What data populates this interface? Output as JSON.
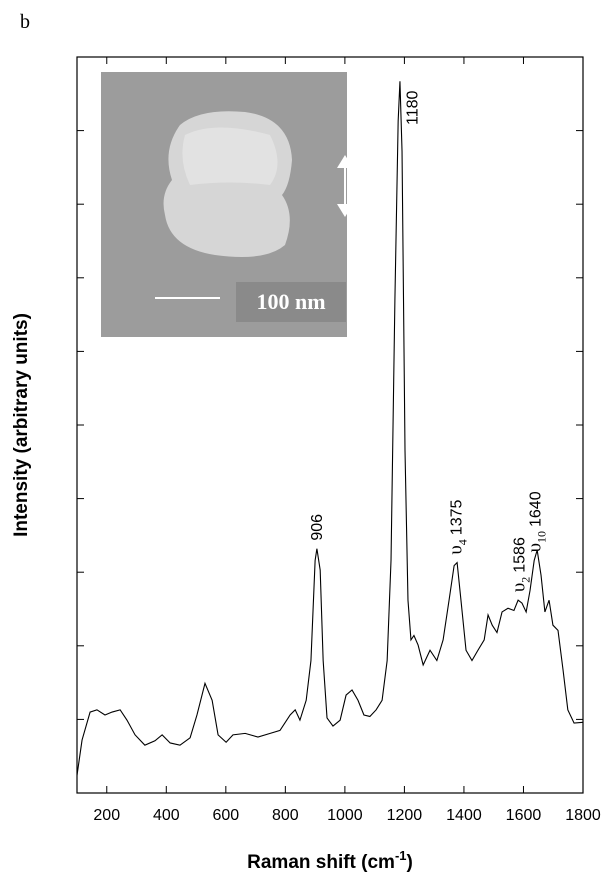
{
  "chart_data": {
    "type": "line",
    "panel_label": "b",
    "x_label": {
      "text": "Raman shift (cm",
      "superscript": "-1",
      "close": ")"
    },
    "y_label": "Intensity (arbitrary units)",
    "xlim": [
      100,
      1800
    ],
    "xticks": [
      200,
      400,
      600,
      800,
      1000,
      1200,
      1400,
      1600,
      1800
    ],
    "ylim": [
      0,
      10
    ],
    "yticks": [
      1,
      2,
      3,
      4,
      5,
      6,
      7,
      8,
      9
    ],
    "ytick_labels": false,
    "inset_scale_label": "100 nm",
    "x": [
      100,
      117,
      144,
      167,
      194,
      218,
      245,
      268,
      295,
      328,
      362,
      386,
      413,
      446,
      480,
      503,
      530,
      554,
      574,
      601,
      624,
      665,
      708,
      749,
      782,
      816,
      833,
      849,
      870,
      886,
      900,
      906,
      917,
      927,
      940,
      960,
      984,
      1004,
      1024,
      1044,
      1064,
      1084,
      1105,
      1125,
      1142,
      1155,
      1168,
      1179,
      1185,
      1192,
      1202,
      1212,
      1222,
      1232,
      1246,
      1263,
      1286,
      1309,
      1330,
      1350,
      1367,
      1377,
      1390,
      1407,
      1427,
      1447,
      1468,
      1481,
      1495,
      1511,
      1528,
      1548,
      1568,
      1582,
      1595,
      1609,
      1622,
      1636,
      1646,
      1659,
      1672,
      1686,
      1699,
      1716,
      1733,
      1749,
      1770,
      1800
    ],
    "series": [
      {
        "color": "#000000",
        "values": [
          0.24,
          0.72,
          1.1,
          1.13,
          1.06,
          1.1,
          1.13,
          0.99,
          0.79,
          0.65,
          0.71,
          0.79,
          0.68,
          0.65,
          0.75,
          1.06,
          1.49,
          1.26,
          0.79,
          0.69,
          0.79,
          0.81,
          0.76,
          0.81,
          0.85,
          1.06,
          1.13,
          0.99,
          1.26,
          1.8,
          3.16,
          3.32,
          3.03,
          1.8,
          1.02,
          0.91,
          0.99,
          1.33,
          1.4,
          1.26,
          1.06,
          1.04,
          1.13,
          1.26,
          1.8,
          3.16,
          6.69,
          9.13,
          9.67,
          8.72,
          4.65,
          2.62,
          2.08,
          2.14,
          2.01,
          1.74,
          1.94,
          1.8,
          2.08,
          2.62,
          3.09,
          3.13,
          2.62,
          1.94,
          1.8,
          1.94,
          2.08,
          2.42,
          2.28,
          2.18,
          2.46,
          2.51,
          2.48,
          2.62,
          2.58,
          2.46,
          2.75,
          3.16,
          3.3,
          2.96,
          2.46,
          2.62,
          2.28,
          2.21,
          1.67,
          1.13,
          0.95,
          0.96
        ]
      }
    ],
    "annotations": [
      {
        "x": 906,
        "label": "906"
      },
      {
        "x": 1180,
        "label": "1180"
      },
      {
        "x": 1375,
        "symbol": "υ",
        "subscript": "4",
        "label": "1375"
      },
      {
        "x": 1586,
        "symbol": "υ",
        "subscript": "2",
        "label": "1586"
      },
      {
        "x": 1640,
        "symbol": "υ",
        "subscript": "10",
        "label": "1640"
      }
    ]
  }
}
